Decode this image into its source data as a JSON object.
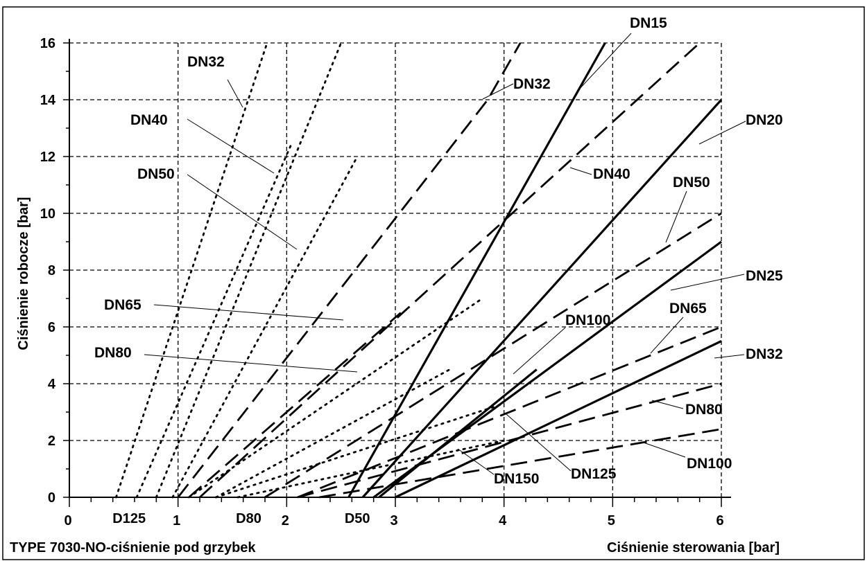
{
  "chart_data": {
    "type": "line",
    "title": "TYPE 7030-NO-ciśnienie pod grzybek",
    "xlabel": "Ciśnienie sterowania [bar]",
    "ylabel": "Ciśnienie robocze [bar]",
    "xlim": [
      0,
      6
    ],
    "ylim": [
      0,
      16
    ],
    "grid": true,
    "x_ticks": [
      "0",
      "1",
      "2",
      "3",
      "4",
      "5",
      "6"
    ],
    "y_ticks": [
      "0",
      "2",
      "4",
      "6",
      "8",
      "10",
      "12",
      "14",
      "16"
    ],
    "x_axis_labels": [
      {
        "text": "D125",
        "x": 0.55
      },
      {
        "text": "D80",
        "x": 1.65
      },
      {
        "text": "D50",
        "x": 2.65
      }
    ],
    "series": [
      {
        "name": "DN32",
        "style": "dotted",
        "x": [
          0.43,
          1.82
        ],
        "y": [
          0,
          16
        ]
      },
      {
        "name": "DN40",
        "style": "dotted",
        "x": [
          0.62,
          2.05
        ],
        "y": [
          0,
          12.5
        ]
      },
      {
        "name": "DN50",
        "style": "dotted",
        "x": [
          0.8,
          2.5
        ],
        "y": [
          0,
          16
        ]
      },
      {
        "name": "",
        "style": "dotted",
        "x": [
          0.95,
          2.65
        ],
        "y": [
          0,
          12.0
        ]
      },
      {
        "name": "DN65",
        "style": "dotted",
        "x": [
          1.1,
          3.8
        ],
        "y": [
          0,
          7.0
        ]
      },
      {
        "name": "DN80",
        "style": "dotted",
        "x": [
          1.35,
          3.5
        ],
        "y": [
          0,
          4.5
        ]
      },
      {
        "name": "DN125",
        "style": "dotted",
        "x": [
          1.35,
          4.0
        ],
        "y": [
          0,
          3.3
        ]
      },
      {
        "name": "DN150",
        "style": "dotted",
        "x": [
          1.55,
          4.0
        ],
        "y": [
          0,
          2.0
        ]
      },
      {
        "name": "DN32",
        "style": "dashed",
        "x": [
          1.0,
          3.85,
          4.15
        ],
        "y": [
          0,
          14,
          16
        ]
      },
      {
        "name": "",
        "style": "dashed",
        "x": [
          1.1,
          3.05
        ],
        "y": [
          0,
          6.5
        ]
      },
      {
        "name": "DN40",
        "style": "dashed",
        "x": [
          1.2,
          5.8
        ],
        "y": [
          0,
          16
        ]
      },
      {
        "name": "DN50",
        "style": "dashed",
        "x": [
          1.8,
          6.0
        ],
        "y": [
          0,
          10
        ]
      },
      {
        "name": "DN65",
        "style": "dashed",
        "x": [
          2.1,
          6.0
        ],
        "y": [
          0,
          6
        ]
      },
      {
        "name": "DN80",
        "style": "dashed",
        "x": [
          2.1,
          6.0
        ],
        "y": [
          0,
          4
        ]
      },
      {
        "name": "DN100",
        "style": "dashed",
        "x": [
          2.3,
          6.0
        ],
        "y": [
          0,
          2.4
        ]
      },
      {
        "name": "DN15",
        "style": "solid",
        "x": [
          2.57,
          4.93
        ],
        "y": [
          0,
          16
        ]
      },
      {
        "name": "DN20",
        "style": "solid",
        "x": [
          2.7,
          6.0
        ],
        "y": [
          0,
          14
        ]
      },
      {
        "name": "DN25",
        "style": "solid",
        "x": [
          2.8,
          6.0
        ],
        "y": [
          0,
          9
        ]
      },
      {
        "name": "DN32",
        "style": "solid",
        "x": [
          3.0,
          6.0
        ],
        "y": [
          0,
          5.5
        ]
      },
      {
        "name": "DN100",
        "style": "solid",
        "x": [
          2.85,
          4.3
        ],
        "y": [
          0,
          4.5
        ]
      }
    ]
  }
}
